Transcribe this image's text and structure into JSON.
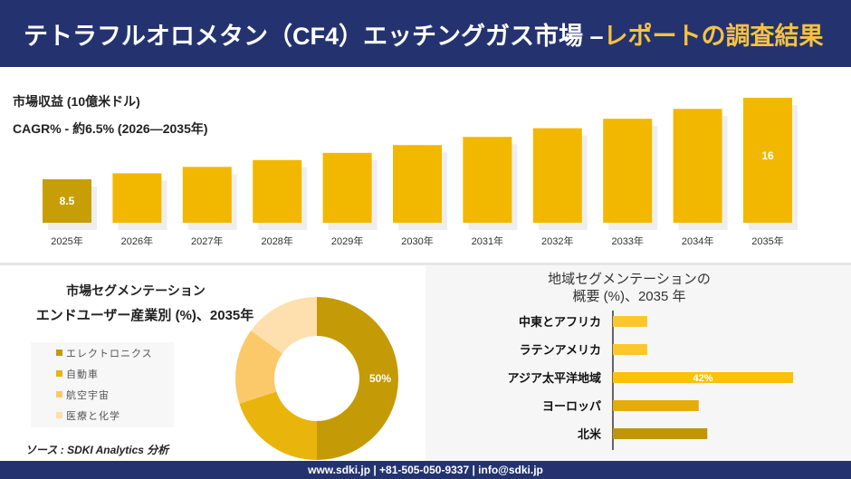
{
  "header": {
    "title_main": "テトラフルオロメタン（CF4）エッチングガス市場 –",
    "title_highlight": "レポートの調査結果"
  },
  "revenue_label": "市場収益 (10億米ドル)",
  "cagr_label": "CAGR% - 約6.5% (2026—2035年)",
  "colors": {
    "header_bg": "#243370",
    "accent": "#f5c342",
    "bar": "#f2b800"
  },
  "chart_data": [
    {
      "type": "bar",
      "categories": [
        "2025年",
        "2026年",
        "2027年",
        "2028年",
        "2029年",
        "2030年",
        "2031年",
        "2032年",
        "2033年",
        "2034年",
        "2035年"
      ],
      "values": [
        8.5,
        9.05,
        9.64,
        10.27,
        10.93,
        11.65,
        12.4,
        13.2,
        14.07,
        14.98,
        16
      ],
      "data_labels": {
        "0": "8.5",
        "10": "16"
      }
    },
    {
      "type": "pie",
      "title": "市場セグメンテーション",
      "subtitle": "エンドユーザー産業別 (%)、2035年",
      "categories": [
        "エレクトロニクス",
        "自動車",
        "航空宇宙",
        "医療と化学"
      ],
      "values": [
        50,
        20,
        15,
        15
      ],
      "colors": [
        "#c49a06",
        "#e9b40c",
        "#fbc96a",
        "#fde0ad"
      ],
      "data_labels": {
        "0": "50%"
      },
      "legend": "left"
    },
    {
      "type": "bar",
      "orientation": "horizontal",
      "title": "地域セグメンテーションの",
      "subtitle": "概要 (%)、2035 年",
      "categories": [
        "中東とアフリカ",
        "ラテンアメリカ",
        "アジア太平洋地域",
        "ヨーロッパ",
        "北米"
      ],
      "values": [
        8,
        8,
        42,
        20,
        22
      ],
      "colors": [
        "#fcc72c",
        "#fcc72c",
        "#fbc00a",
        "#e3ac0b",
        "#c0950a"
      ],
      "data_labels": {
        "2": "42%"
      }
    }
  ],
  "source": "ソース : SDKI Analytics 分析",
  "footer": "www.sdki.jp | +81-505-050-9337 | info@sdki.jp"
}
